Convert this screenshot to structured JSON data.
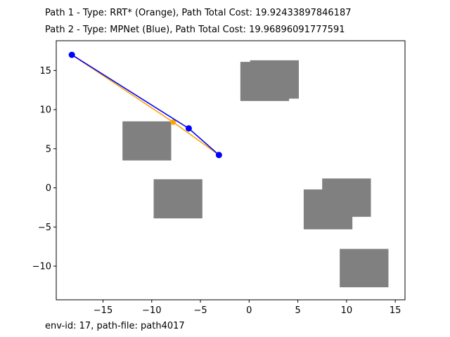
{
  "header": {
    "path1_line": "Path 1 - Type: RRT* (Orange), Path Total Cost: 19.92433897846187",
    "path2_line": "Path 2 - Type: MPNet (Blue), Path Total Cost: 19.96896091777591"
  },
  "footer": {
    "text": "env-id: 17, path-file: path4017"
  },
  "chart_data": {
    "type": "line",
    "title": "",
    "xlabel": "",
    "ylabel": "",
    "xlim": [
      -19.8,
      16.0
    ],
    "ylim": [
      -14.3,
      18.8
    ],
    "xticks": [
      -15,
      -10,
      -5,
      0,
      5,
      10,
      15
    ],
    "xtick_labels": [
      "−15",
      "−10",
      "−5",
      "0",
      "5",
      "10",
      "15"
    ],
    "yticks": [
      -10,
      -5,
      0,
      5,
      10,
      15
    ],
    "ytick_labels": [
      "−10",
      "−5",
      "0",
      "5",
      "10",
      "15"
    ],
    "grid": false,
    "obstacles": [
      {
        "x0": -0.9,
        "y0": 11.1,
        "x1": 4.1,
        "y1": 16.1
      },
      {
        "x0": 0.1,
        "y0": 11.4,
        "x1": 5.1,
        "y1": 16.3
      },
      {
        "x0": -13.0,
        "y0": 3.5,
        "x1": -8.0,
        "y1": 8.5
      },
      {
        "x0": -9.8,
        "y0": -3.9,
        "x1": -4.8,
        "y1": 1.1
      },
      {
        "x0": 7.5,
        "y0": -3.7,
        "x1": 12.5,
        "y1": 1.2
      },
      {
        "x0": 5.6,
        "y0": -5.3,
        "x1": 10.6,
        "y1": -0.2
      },
      {
        "x0": 9.3,
        "y0": -12.7,
        "x1": 14.3,
        "y1": -7.8
      }
    ],
    "obstacle_color": "#808080",
    "series": [
      {
        "name": "RRT*",
        "color": "#FFA500",
        "points": [
          [
            -18.2,
            17.0
          ],
          [
            -7.8,
            8.4
          ],
          [
            -3.1,
            4.2
          ]
        ]
      },
      {
        "name": "MPNet",
        "color": "#0000FF",
        "points": [
          [
            -18.2,
            17.0
          ],
          [
            -6.2,
            7.6
          ],
          [
            -3.1,
            4.2
          ]
        ]
      }
    ]
  }
}
